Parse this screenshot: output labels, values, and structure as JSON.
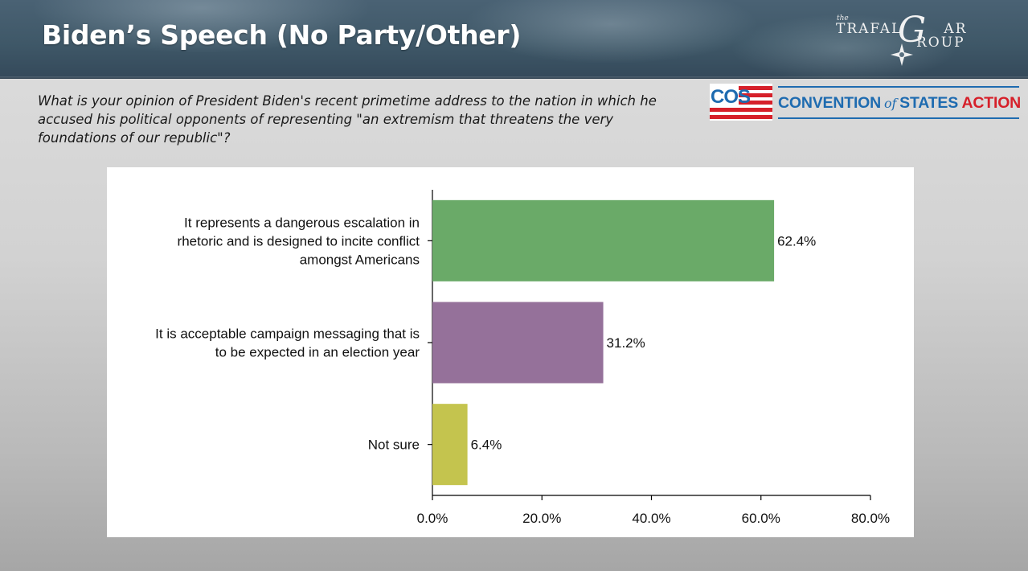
{
  "header": {
    "title": "Biden’s Speech (No Party/Other)"
  },
  "logos": {
    "trafalgar": {
      "the": "the",
      "line1": "TRAFAL",
      "big_letter": "G",
      "line1_end": "AR",
      "line2": "ROUP"
    },
    "cos": {
      "flag_text": "COS",
      "convention": "CONVENTION",
      "of": "of",
      "states": "STATES",
      "action": "ACTION"
    }
  },
  "question": "What is your opinion of President Biden's recent primetime address to the nation in which he accused his political opponents of representing \"an extremism that threatens the very foundations of our republic\"?",
  "colors": {
    "bar_1": "#6aaa68",
    "bar_2": "#95719a",
    "bar_3": "#c4c44e",
    "cos_blue": "#1e6bb0",
    "cos_red": "#d6202a"
  },
  "chart_data": {
    "type": "bar",
    "orientation": "horizontal",
    "categories": [
      [
        "It represents a dangerous escalation in",
        "rhetoric and is designed to incite conflict",
        "amongst Americans"
      ],
      [
        "It is acceptable campaign messaging that is",
        "to be expected in an election year"
      ],
      [
        "Not sure"
      ]
    ],
    "values": [
      62.4,
      31.2,
      6.4
    ],
    "value_labels": [
      "62.4%",
      "31.2%",
      "6.4%"
    ],
    "xlim": [
      0,
      80
    ],
    "x_ticks": [
      0,
      20,
      40,
      60,
      80
    ],
    "x_tick_labels": [
      "0.0%",
      "20.0%",
      "40.0%",
      "60.0%",
      "80.0%"
    ],
    "grid": false,
    "legend": "none"
  }
}
